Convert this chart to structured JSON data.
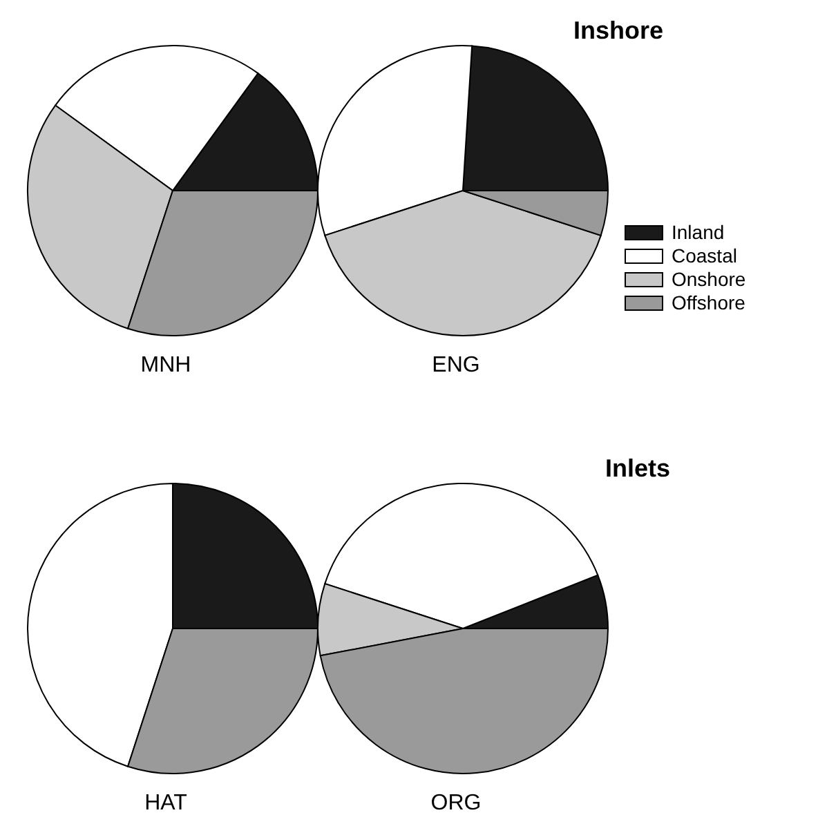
{
  "chart_data": [
    {
      "type": "pie",
      "title": "MNH",
      "categories": [
        null,
        null,
        null,
        null
      ],
      "values": [
        15,
        25,
        30,
        30
      ],
      "colors": [
        "#1a1a1a",
        "#ffffff",
        "#c8c8c8",
        "#9a9a9a"
      ]
    },
    {
      "type": "pie",
      "title": "ENG",
      "annotations": [
        "Inshore"
      ],
      "legend": "right",
      "categories": [
        "Inland",
        "Coastal",
        "Onshore",
        "Offshore"
      ],
      "values": [
        24,
        31,
        40,
        5
      ],
      "colors": [
        "#1a1a1a",
        "#ffffff",
        "#c8c8c8",
        "#9a9a9a"
      ]
    },
    {
      "type": "pie",
      "title": "HAT",
      "categories": [
        null,
        null,
        null,
        null
      ],
      "values": [
        25,
        45,
        0,
        30
      ],
      "colors": [
        "#1a1a1a",
        "#ffffff",
        "#c8c8c8",
        "#9a9a9a"
      ]
    },
    {
      "type": "pie",
      "title": "ORG",
      "annotations": [
        "Inlets"
      ],
      "categories": [
        null,
        null,
        null,
        null
      ],
      "values": [
        6,
        39,
        8,
        47
      ],
      "colors": [
        "#1a1a1a",
        "#ffffff",
        "#c8c8c8",
        "#9a9a9a"
      ]
    }
  ]
}
